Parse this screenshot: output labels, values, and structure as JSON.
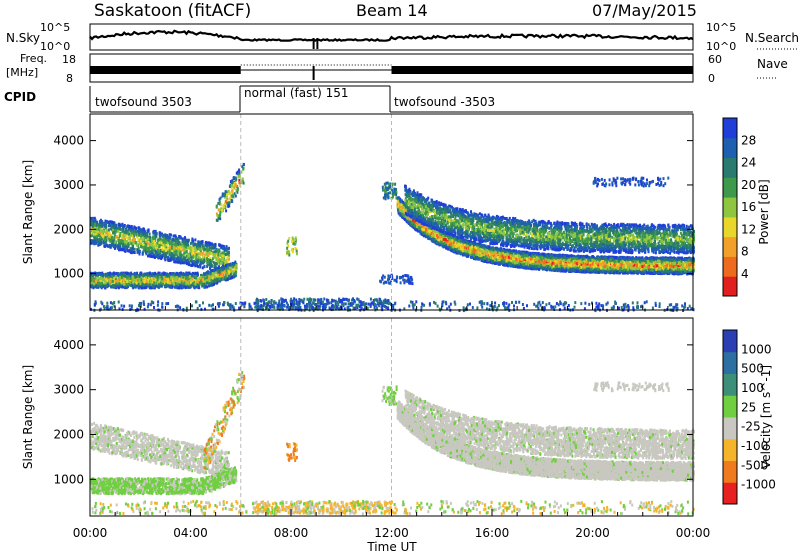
{
  "header": {
    "station": "Saskatoon (fitACF)",
    "beam": "Beam 14",
    "date": "07/May/2015"
  },
  "noise_panel": {
    "left_label": "N.Sky",
    "left_ticks": [
      "10^5",
      "10^0"
    ],
    "right_label": "N.Search",
    "right_ticks": [
      "10^5",
      "10^0"
    ]
  },
  "freq_panel": {
    "left_label_line1": "Freq.",
    "left_label_line2": "[MHz]",
    "left_ticks": [
      "18",
      "8"
    ],
    "right_label": "Nave",
    "right_ticks": [
      "60",
      "0"
    ]
  },
  "cpid": {
    "label": "CPID",
    "segments": [
      {
        "start": "00:00",
        "end": "06:00",
        "name": "twofsound 3503"
      },
      {
        "start": "06:00",
        "end": "12:00",
        "name": "normal (fast) 151"
      },
      {
        "start": "12:00",
        "end": "24:00",
        "name": "twofsound -3503"
      }
    ]
  },
  "x_axis": {
    "label": "Time UT",
    "ticks": [
      "00:00",
      "04:00",
      "08:00",
      "12:00",
      "16:00",
      "20:00",
      "00:00"
    ],
    "range_hours": [
      0,
      24
    ]
  },
  "chart_data": [
    {
      "type": "heatmap",
      "title": "",
      "ylabel": "Slant Range [km]",
      "ylim": [
        180,
        4600
      ],
      "yticks": [
        "1000",
        "2000",
        "3000",
        "4000"
      ],
      "colorbar": {
        "label": "Power [dB]",
        "ticks": [
          "28",
          "24",
          "20",
          "16",
          "12",
          "8",
          "4"
        ],
        "range": [
          0,
          30
        ],
        "colors": [
          "#1f3fd8",
          "#1e5fb0",
          "#2a7a6f",
          "#3e9a4a",
          "#8fc640",
          "#e8d62a",
          "#f3a02a",
          "#ee6a1e",
          "#e11f1f"
        ]
      }
    },
    {
      "type": "heatmap",
      "title": "",
      "ylabel": "Slant Range [km]",
      "ylim": [
        180,
        4600
      ],
      "yticks": [
        "1000",
        "2000",
        "3000",
        "4000"
      ],
      "colorbar": {
        "label": "Velocity [m s^-1]",
        "ticks": [
          "1000",
          "500",
          "100",
          "25",
          "-25",
          "-100",
          "-500",
          "-1000"
        ],
        "colors": [
          "#2b3fb5",
          "#2d6fa0",
          "#3d8f7a",
          "#6fcf40",
          "#c8c8c0",
          "#f5b42a",
          "#f07a1e",
          "#e82020"
        ]
      }
    }
  ]
}
